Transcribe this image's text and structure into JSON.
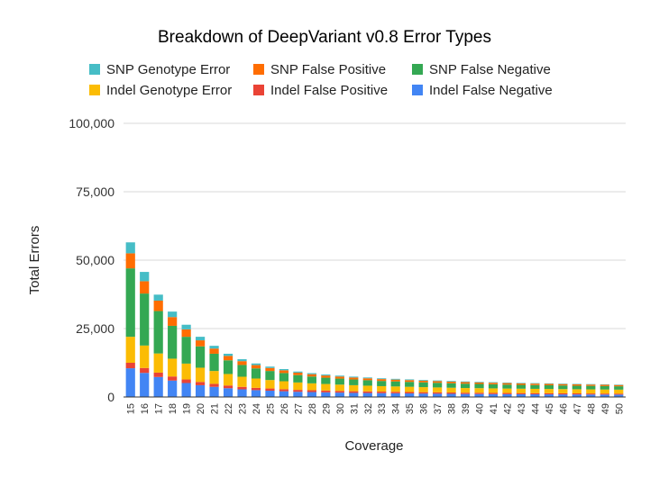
{
  "chart_data": {
    "type": "bar",
    "stacked": true,
    "title": "Breakdown of DeepVariant v0.8 Error Types",
    "xlabel": "Coverage",
    "ylabel": "Total Errors",
    "ylim": [
      0,
      100000
    ],
    "yticks": [
      "0",
      "25,000",
      "50,000",
      "75,000",
      "100,000"
    ],
    "ytick_values": [
      0,
      25000,
      50000,
      75000,
      100000
    ],
    "grid": true,
    "legend_position": "top",
    "categories": [
      "15",
      "16",
      "17",
      "18",
      "19",
      "20",
      "21",
      "22",
      "23",
      "24",
      "25",
      "26",
      "27",
      "28",
      "29",
      "30",
      "31",
      "32",
      "33",
      "34",
      "35",
      "36",
      "37",
      "38",
      "39",
      "40",
      "41",
      "42",
      "43",
      "44",
      "45",
      "46",
      "47",
      "48",
      "49",
      "50"
    ],
    "series": [
      {
        "name": "Indel False Negative",
        "color": "#4285f4",
        "values": [
          10500,
          8800,
          7300,
          6000,
          5100,
          4300,
          3700,
          3200,
          2800,
          2500,
          2300,
          2100,
          1900,
          1800,
          1700,
          1600,
          1500,
          1450,
          1400,
          1350,
          1300,
          1250,
          1200,
          1150,
          1100,
          1080,
          1050,
          1020,
          1000,
          980,
          960,
          940,
          920,
          900,
          880,
          860
        ]
      },
      {
        "name": "Indel False Positive",
        "color": "#ea4335",
        "values": [
          2000,
          1800,
          1600,
          1500,
          1300,
          1200,
          1100,
          1000,
          900,
          850,
          800,
          750,
          700,
          680,
          650,
          620,
          600,
          580,
          560,
          540,
          520,
          500,
          490,
          480,
          470,
          460,
          450,
          440,
          430,
          420,
          410,
          400,
          390,
          380,
          370,
          360
        ]
      },
      {
        "name": "Indel Genotype Error",
        "color": "#fbbc04",
        "values": [
          9500,
          8200,
          7000,
          6500,
          5800,
          5200,
          4700,
          4200,
          3700,
          3400,
          3100,
          2900,
          2700,
          2500,
          2400,
          2300,
          2200,
          2100,
          2000,
          1950,
          1900,
          1850,
          1800,
          1750,
          1700,
          1680,
          1650,
          1620,
          1600,
          1580,
          1560,
          1540,
          1520,
          1500,
          1480,
          1460
        ]
      },
      {
        "name": "SNP False Negative",
        "color": "#34a853",
        "values": [
          25000,
          19000,
          15500,
          12000,
          9800,
          7800,
          6300,
          5000,
          4300,
          3700,
          3300,
          3000,
          2700,
          2500,
          2300,
          2200,
          2100,
          2000,
          1900,
          1850,
          1800,
          1750,
          1700,
          1650,
          1600,
          1550,
          1500,
          1450,
          1400,
          1380,
          1350,
          1330,
          1300,
          1280,
          1250,
          1230
        ]
      },
      {
        "name": "SNP False Positive",
        "color": "#ff6d01",
        "values": [
          5500,
          4500,
          3800,
          3200,
          2700,
          2200,
          1900,
          1600,
          1400,
          1200,
          1100,
          1000,
          900,
          850,
          800,
          750,
          720,
          700,
          680,
          660,
          640,
          620,
          600,
          580,
          570,
          560,
          550,
          540,
          530,
          520,
          510,
          500,
          490,
          480,
          470,
          460
        ]
      },
      {
        "name": "SNP Genotype Error",
        "color": "#46bdc6",
        "values": [
          4000,
          3400,
          2200,
          2000,
          1700,
          1300,
          1000,
          800,
          700,
          600,
          500,
          450,
          400,
          380,
          360,
          340,
          320,
          300,
          290,
          280,
          270,
          260,
          250,
          240,
          230,
          220,
          210,
          200,
          195,
          190,
          185,
          180,
          175,
          170,
          165,
          160
        ]
      }
    ],
    "legend_order": [
      "SNP Genotype Error",
      "SNP False Positive",
      "SNP False Negative",
      "Indel Genotype Error",
      "Indel False Positive",
      "Indel False Negative"
    ]
  }
}
